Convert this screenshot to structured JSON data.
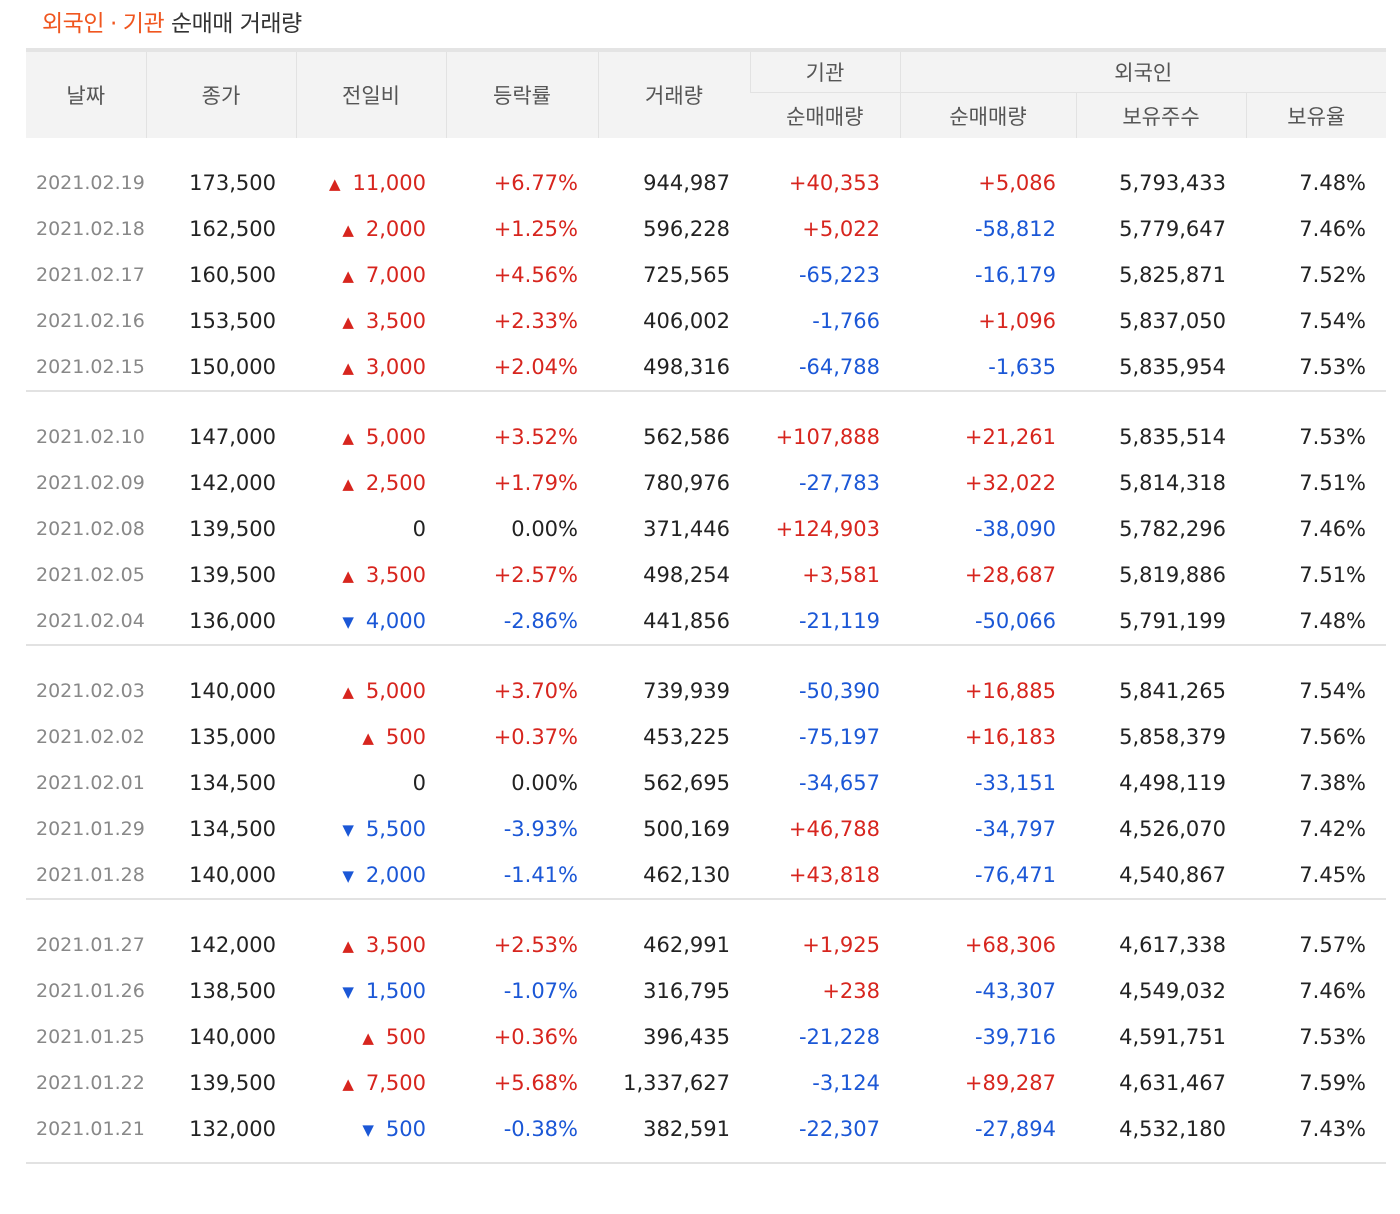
{
  "title": {
    "part1": "외국인",
    "dot": "·",
    "part2": "기관",
    "rest": "순매매 거래량"
  },
  "colors": {
    "up": "#d7251e",
    "down": "#1b57d6",
    "accent": "#f0561f"
  },
  "headers": {
    "date": "날짜",
    "close": "종가",
    "change": "전일비",
    "rate": "등락률",
    "volume": "거래량",
    "inst_group": "기관",
    "inst_net": "순매매량",
    "foreign_group": "외국인",
    "foreign_net": "순매매량",
    "holdings": "보유주수",
    "holding_ratio": "보유율"
  },
  "groups": [
    {
      "rows": [
        {
          "date": "2021.02.19",
          "close": "173,500",
          "dir": "up",
          "change": "11,000",
          "rate": "+6.77%",
          "volume": "944,987",
          "inst": "+40,353",
          "foreign": "+5,086",
          "holdings": "5,793,433",
          "ratio": "7.48%"
        },
        {
          "date": "2021.02.18",
          "close": "162,500",
          "dir": "up",
          "change": "2,000",
          "rate": "+1.25%",
          "volume": "596,228",
          "inst": "+5,022",
          "foreign": "-58,812",
          "holdings": "5,779,647",
          "ratio": "7.46%"
        },
        {
          "date": "2021.02.17",
          "close": "160,500",
          "dir": "up",
          "change": "7,000",
          "rate": "+4.56%",
          "volume": "725,565",
          "inst": "-65,223",
          "foreign": "-16,179",
          "holdings": "5,825,871",
          "ratio": "7.52%"
        },
        {
          "date": "2021.02.16",
          "close": "153,500",
          "dir": "up",
          "change": "3,500",
          "rate": "+2.33%",
          "volume": "406,002",
          "inst": "-1,766",
          "foreign": "+1,096",
          "holdings": "5,837,050",
          "ratio": "7.54%"
        },
        {
          "date": "2021.02.15",
          "close": "150,000",
          "dir": "up",
          "change": "3,000",
          "rate": "+2.04%",
          "volume": "498,316",
          "inst": "-64,788",
          "foreign": "-1,635",
          "holdings": "5,835,954",
          "ratio": "7.53%"
        }
      ]
    },
    {
      "rows": [
        {
          "date": "2021.02.10",
          "close": "147,000",
          "dir": "up",
          "change": "5,000",
          "rate": "+3.52%",
          "volume": "562,586",
          "inst": "+107,888",
          "foreign": "+21,261",
          "holdings": "5,835,514",
          "ratio": "7.53%"
        },
        {
          "date": "2021.02.09",
          "close": "142,000",
          "dir": "up",
          "change": "2,500",
          "rate": "+1.79%",
          "volume": "780,976",
          "inst": "-27,783",
          "foreign": "+32,022",
          "holdings": "5,814,318",
          "ratio": "7.51%"
        },
        {
          "date": "2021.02.08",
          "close": "139,500",
          "dir": "none",
          "change": "0",
          "rate": "0.00%",
          "volume": "371,446",
          "inst": "+124,903",
          "foreign": "-38,090",
          "holdings": "5,782,296",
          "ratio": "7.46%"
        },
        {
          "date": "2021.02.05",
          "close": "139,500",
          "dir": "up",
          "change": "3,500",
          "rate": "+2.57%",
          "volume": "498,254",
          "inst": "+3,581",
          "foreign": "+28,687",
          "holdings": "5,819,886",
          "ratio": "7.51%"
        },
        {
          "date": "2021.02.04",
          "close": "136,000",
          "dir": "down",
          "change": "4,000",
          "rate": "-2.86%",
          "volume": "441,856",
          "inst": "-21,119",
          "foreign": "-50,066",
          "holdings": "5,791,199",
          "ratio": "7.48%"
        }
      ]
    },
    {
      "rows": [
        {
          "date": "2021.02.03",
          "close": "140,000",
          "dir": "up",
          "change": "5,000",
          "rate": "+3.70%",
          "volume": "739,939",
          "inst": "-50,390",
          "foreign": "+16,885",
          "holdings": "5,841,265",
          "ratio": "7.54%"
        },
        {
          "date": "2021.02.02",
          "close": "135,000",
          "dir": "up",
          "change": "500",
          "rate": "+0.37%",
          "volume": "453,225",
          "inst": "-75,197",
          "foreign": "+16,183",
          "holdings": "5,858,379",
          "ratio": "7.56%"
        },
        {
          "date": "2021.02.01",
          "close": "134,500",
          "dir": "none",
          "change": "0",
          "rate": "0.00%",
          "volume": "562,695",
          "inst": "-34,657",
          "foreign": "-33,151",
          "holdings": "4,498,119",
          "ratio": "7.38%"
        },
        {
          "date": "2021.01.29",
          "close": "134,500",
          "dir": "down",
          "change": "5,500",
          "rate": "-3.93%",
          "volume": "500,169",
          "inst": "+46,788",
          "foreign": "-34,797",
          "holdings": "4,526,070",
          "ratio": "7.42%"
        },
        {
          "date": "2021.01.28",
          "close": "140,000",
          "dir": "down",
          "change": "2,000",
          "rate": "-1.41%",
          "volume": "462,130",
          "inst": "+43,818",
          "foreign": "-76,471",
          "holdings": "4,540,867",
          "ratio": "7.45%"
        }
      ]
    },
    {
      "rows": [
        {
          "date": "2021.01.27",
          "close": "142,000",
          "dir": "up",
          "change": "3,500",
          "rate": "+2.53%",
          "volume": "462,991",
          "inst": "+1,925",
          "foreign": "+68,306",
          "holdings": "4,617,338",
          "ratio": "7.57%"
        },
        {
          "date": "2021.01.26",
          "close": "138,500",
          "dir": "down",
          "change": "1,500",
          "rate": "-1.07%",
          "volume": "316,795",
          "inst": "+238",
          "foreign": "-43,307",
          "holdings": "4,549,032",
          "ratio": "7.46%"
        },
        {
          "date": "2021.01.25",
          "close": "140,000",
          "dir": "up",
          "change": "500",
          "rate": "+0.36%",
          "volume": "396,435",
          "inst": "-21,228",
          "foreign": "-39,716",
          "holdings": "4,591,751",
          "ratio": "7.53%"
        },
        {
          "date": "2021.01.22",
          "close": "139,500",
          "dir": "up",
          "change": "7,500",
          "rate": "+5.68%",
          "volume": "1,337,627",
          "inst": "-3,124",
          "foreign": "+89,287",
          "holdings": "4,631,467",
          "ratio": "7.59%"
        },
        {
          "date": "2021.01.21",
          "close": "132,000",
          "dir": "down",
          "change": "500",
          "rate": "-0.38%",
          "volume": "382,591",
          "inst": "-22,307",
          "foreign": "-27,894",
          "holdings": "4,532,180",
          "ratio": "7.43%"
        }
      ]
    }
  ]
}
